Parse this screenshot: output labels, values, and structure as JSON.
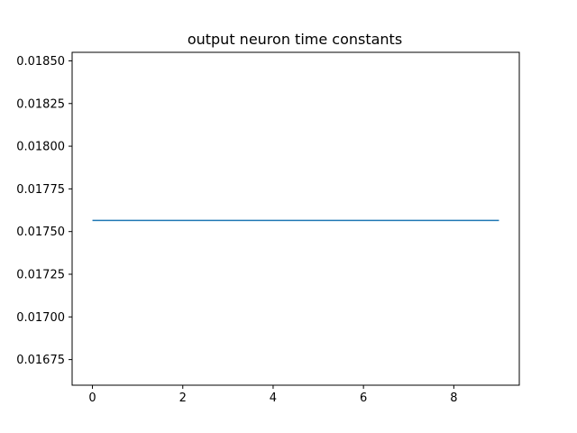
{
  "chart_data": {
    "type": "line",
    "title": "output neuron time constants",
    "xlabel": "",
    "ylabel": "",
    "xlim": [
      -0.45,
      9.45
    ],
    "ylim": [
      0.0166,
      0.01855
    ],
    "x_ticks": [
      0,
      2,
      4,
      6,
      8
    ],
    "x_tick_labels": [
      "0",
      "2",
      "4",
      "6",
      "8"
    ],
    "y_ticks": [
      0.01675,
      0.017,
      0.01725,
      0.0175,
      0.01775,
      0.018,
      0.01825,
      0.0185
    ],
    "y_tick_labels": [
      "0.01675",
      "0.01700",
      "0.01725",
      "0.01750",
      "0.01775",
      "0.01800",
      "0.01825",
      "0.01850"
    ],
    "grid": false,
    "series": [
      {
        "name": "output neuron time constants",
        "color": "#1f77b4",
        "x": [
          0,
          1,
          2,
          3,
          4,
          5,
          6,
          7,
          8,
          9
        ],
        "values": [
          0.017565,
          0.017565,
          0.017565,
          0.017565,
          0.017565,
          0.017565,
          0.017565,
          0.017565,
          0.017565,
          0.017565
        ]
      }
    ]
  }
}
